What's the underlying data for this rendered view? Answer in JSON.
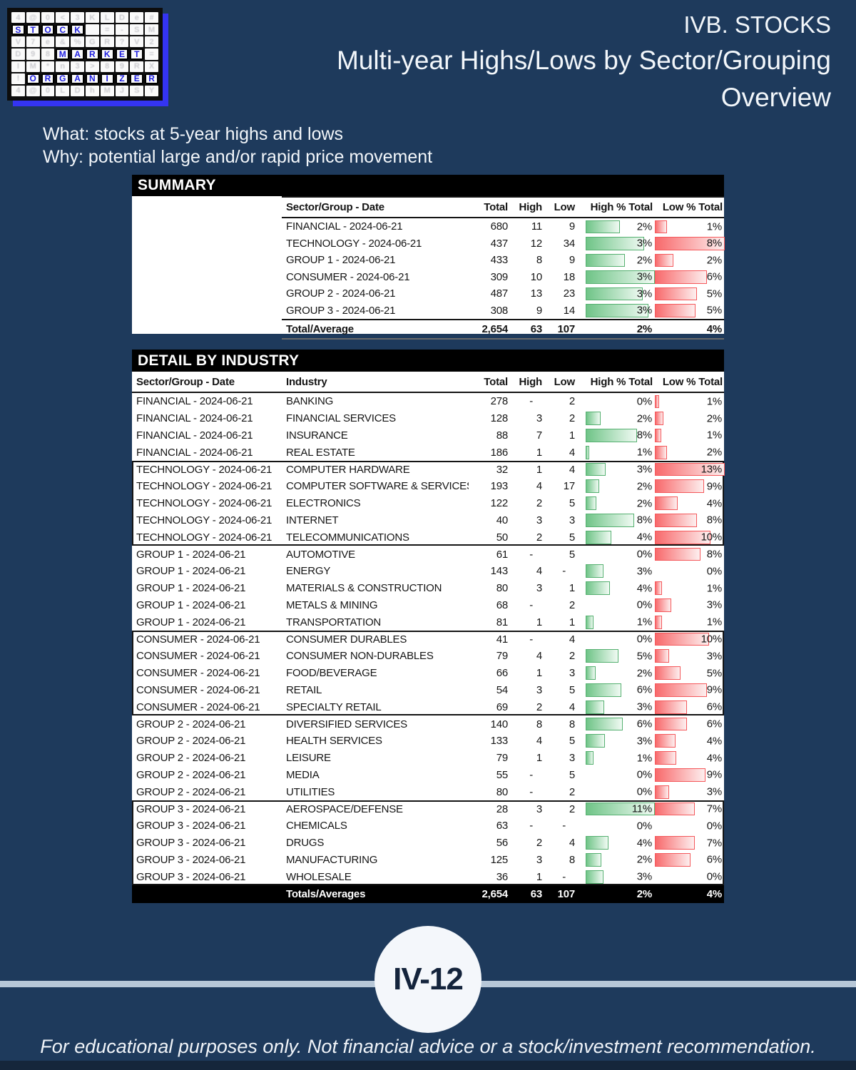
{
  "page": {
    "bg_color": "#1E3A5C",
    "divider_color": "#B7C7D7",
    "footer_strip_color": "#15263B"
  },
  "logo": {
    "rows": [
      "4@0<3KLDe#",
      "STOCK =-SM",
      "V7e&%GR?V2",
      "D98MARKET=",
      "IM*n3>89RX",
      "!ORGANIZER",
      "4@0LDhMJSY"
    ],
    "masks": [
      "0000000000",
      "1111100000",
      "0000000000",
      "0001111110",
      "0000000000",
      "0111111111",
      "0000000000"
    ],
    "letter_color": "#1d1dde",
    "shadow_color": "#3434F2"
  },
  "header": {
    "title_line1": "IVB. STOCKS",
    "title_line2": "Multi-year Highs/Lows by Sector/Grouping",
    "title_line3": "Overview",
    "what_line": "What: stocks at 5-year highs and lows",
    "why_line": "Why: potential large and/or rapid price movement"
  },
  "summary": {
    "section_title": "SUMMARY",
    "columns": [
      "Sector/Group - Date",
      "Total",
      "High",
      "Low",
      "High % Total",
      "Low % Total"
    ],
    "rows": [
      [
        "FINANCIAL - 2024-06-21",
        "680",
        "11",
        "9",
        "2%",
        "1%"
      ],
      [
        "TECHNOLOGY - 2024-06-21",
        "437",
        "12",
        "34",
        "3%",
        "8%"
      ],
      [
        "GROUP 1 - 2024-06-21",
        "433",
        "8",
        "9",
        "2%",
        "2%"
      ],
      [
        "CONSUMER - 2024-06-21",
        "309",
        "10",
        "18",
        "3%",
        "6%"
      ],
      [
        "GROUP 2 - 2024-06-21",
        "487",
        "13",
        "23",
        "3%",
        "5%"
      ],
      [
        "GROUP 3 - 2024-06-21",
        "308",
        "9",
        "14",
        "3%",
        "5%"
      ]
    ],
    "totals": [
      "Total/Average",
      "2,654",
      "63",
      "107",
      "2%",
      "4%"
    ]
  },
  "detail": {
    "section_title": "DETAIL BY INDUSTRY",
    "columns": [
      "Sector/Group - Date",
      "Industry",
      "Total",
      "High",
      "Low",
      "High % Total",
      "Low % Total"
    ],
    "groups": [
      {
        "sector": "FINANCIAL - 2024-06-21",
        "boxed": false,
        "rows": [
          [
            "BANKING",
            "278",
            "-",
            "2",
            "0%",
            "1%"
          ],
          [
            "FINANCIAL SERVICES",
            "128",
            "3",
            "2",
            "2%",
            "2%"
          ],
          [
            "INSURANCE",
            "88",
            "7",
            "1",
            "8%",
            "1%"
          ],
          [
            "REAL ESTATE",
            "186",
            "1",
            "4",
            "1%",
            "2%"
          ]
        ]
      },
      {
        "sector": "TECHNOLOGY - 2024-06-21",
        "boxed": true,
        "rows": [
          [
            "COMPUTER HARDWARE",
            "32",
            "1",
            "4",
            "3%",
            "13%"
          ],
          [
            "COMPUTER SOFTWARE & SERVICES",
            "193",
            "4",
            "17",
            "2%",
            "9%"
          ],
          [
            "ELECTRONICS",
            "122",
            "2",
            "5",
            "2%",
            "4%"
          ],
          [
            "INTERNET",
            "40",
            "3",
            "3",
            "8%",
            "8%"
          ],
          [
            "TELECOMMUNICATIONS",
            "50",
            "2",
            "5",
            "4%",
            "10%"
          ]
        ]
      },
      {
        "sector": "GROUP 1 - 2024-06-21",
        "boxed": false,
        "rows": [
          [
            "AUTOMOTIVE",
            "61",
            "-",
            "5",
            "0%",
            "8%"
          ],
          [
            "ENERGY",
            "143",
            "4",
            "-",
            "3%",
            "0%"
          ],
          [
            "MATERIALS & CONSTRUCTION",
            "80",
            "3",
            "1",
            "4%",
            "1%"
          ],
          [
            "METALS & MINING",
            "68",
            "-",
            "2",
            "0%",
            "3%"
          ],
          [
            "TRANSPORTATION",
            "81",
            "1",
            "1",
            "1%",
            "1%"
          ]
        ]
      },
      {
        "sector": "CONSUMER - 2024-06-21",
        "boxed": true,
        "rows": [
          [
            "CONSUMER DURABLES",
            "41",
            "-",
            "4",
            "0%",
            "10%"
          ],
          [
            "CONSUMER NON-DURABLES",
            "79",
            "4",
            "2",
            "5%",
            "3%"
          ],
          [
            "FOOD/BEVERAGE",
            "66",
            "1",
            "3",
            "2%",
            "5%"
          ],
          [
            "RETAIL",
            "54",
            "3",
            "5",
            "6%",
            "9%"
          ],
          [
            "SPECIALTY RETAIL",
            "69",
            "2",
            "4",
            "3%",
            "6%"
          ]
        ]
      },
      {
        "sector": "GROUP 2 - 2024-06-21",
        "boxed": false,
        "rows": [
          [
            "DIVERSIFIED SERVICES",
            "140",
            "8",
            "8",
            "6%",
            "6%"
          ],
          [
            "HEALTH SERVICES",
            "133",
            "4",
            "5",
            "3%",
            "4%"
          ],
          [
            "LEISURE",
            "79",
            "1",
            "3",
            "1%",
            "4%"
          ],
          [
            "MEDIA",
            "55",
            "-",
            "5",
            "0%",
            "9%"
          ],
          [
            "UTILITIES",
            "80",
            "-",
            "2",
            "0%",
            "3%"
          ]
        ]
      },
      {
        "sector": "GROUP 3 - 2024-06-21",
        "boxed": true,
        "rows": [
          [
            "AEROSPACE/DEFENSE",
            "28",
            "3",
            "2",
            "11%",
            "7%"
          ],
          [
            "CHEMICALS",
            "63",
            "-",
            "-",
            "0%",
            "0%"
          ],
          [
            "DRUGS",
            "56",
            "2",
            "4",
            "4%",
            "7%"
          ],
          [
            "MANUFACTURING",
            "125",
            "3",
            "8",
            "2%",
            "6%"
          ],
          [
            "WHOLESALE",
            "36",
            "1",
            "-",
            "3%",
            "0%"
          ]
        ]
      }
    ],
    "totals": [
      "Totals/Averages",
      "2,654",
      "63",
      "107",
      "2%",
      "4%"
    ]
  },
  "badge": {
    "label": "IV-12"
  },
  "footer": {
    "disclaimer": "For educational purposes only. Not financial advice or a stock/investment recommendation."
  },
  "colors": {
    "bar_green": "#6FC487",
    "bar_red": "#F8696B"
  }
}
